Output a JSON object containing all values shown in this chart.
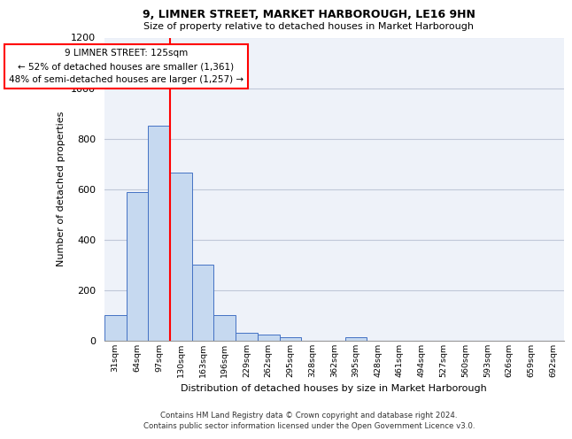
{
  "title1": "9, LIMNER STREET, MARKET HARBOROUGH, LE16 9HN",
  "title2": "Size of property relative to detached houses in Market Harborough",
  "xlabel": "Distribution of detached houses by size in Market Harborough",
  "ylabel": "Number of detached properties",
  "bin_labels": [
    "31sqm",
    "64sqm",
    "97sqm",
    "130sqm",
    "163sqm",
    "196sqm",
    "229sqm",
    "262sqm",
    "295sqm",
    "328sqm",
    "362sqm",
    "395sqm",
    "428sqm",
    "461sqm",
    "494sqm",
    "527sqm",
    "560sqm",
    "593sqm",
    "626sqm",
    "659sqm",
    "692sqm"
  ],
  "bar_heights": [
    100,
    590,
    850,
    665,
    300,
    100,
    33,
    25,
    13,
    0,
    0,
    15,
    0,
    0,
    0,
    0,
    0,
    0,
    0,
    0,
    0
  ],
  "bar_color": "#c6d9f0",
  "bar_edge_color": "#4472c4",
  "grid_color": "#c0c8d8",
  "background_color": "#eef2f9",
  "vline_color": "red",
  "annotation_text": "9 LIMNER STREET: 125sqm\n← 52% of detached houses are smaller (1,361)\n48% of semi-detached houses are larger (1,257) →",
  "annotation_box_color": "white",
  "annotation_box_edge": "red",
  "ylim": [
    0,
    1200
  ],
  "yticks": [
    0,
    200,
    400,
    600,
    800,
    1000,
    1200
  ],
  "footer1": "Contains HM Land Registry data © Crown copyright and database right 2024.",
  "footer2": "Contains public sector information licensed under the Open Government Licence v3.0."
}
